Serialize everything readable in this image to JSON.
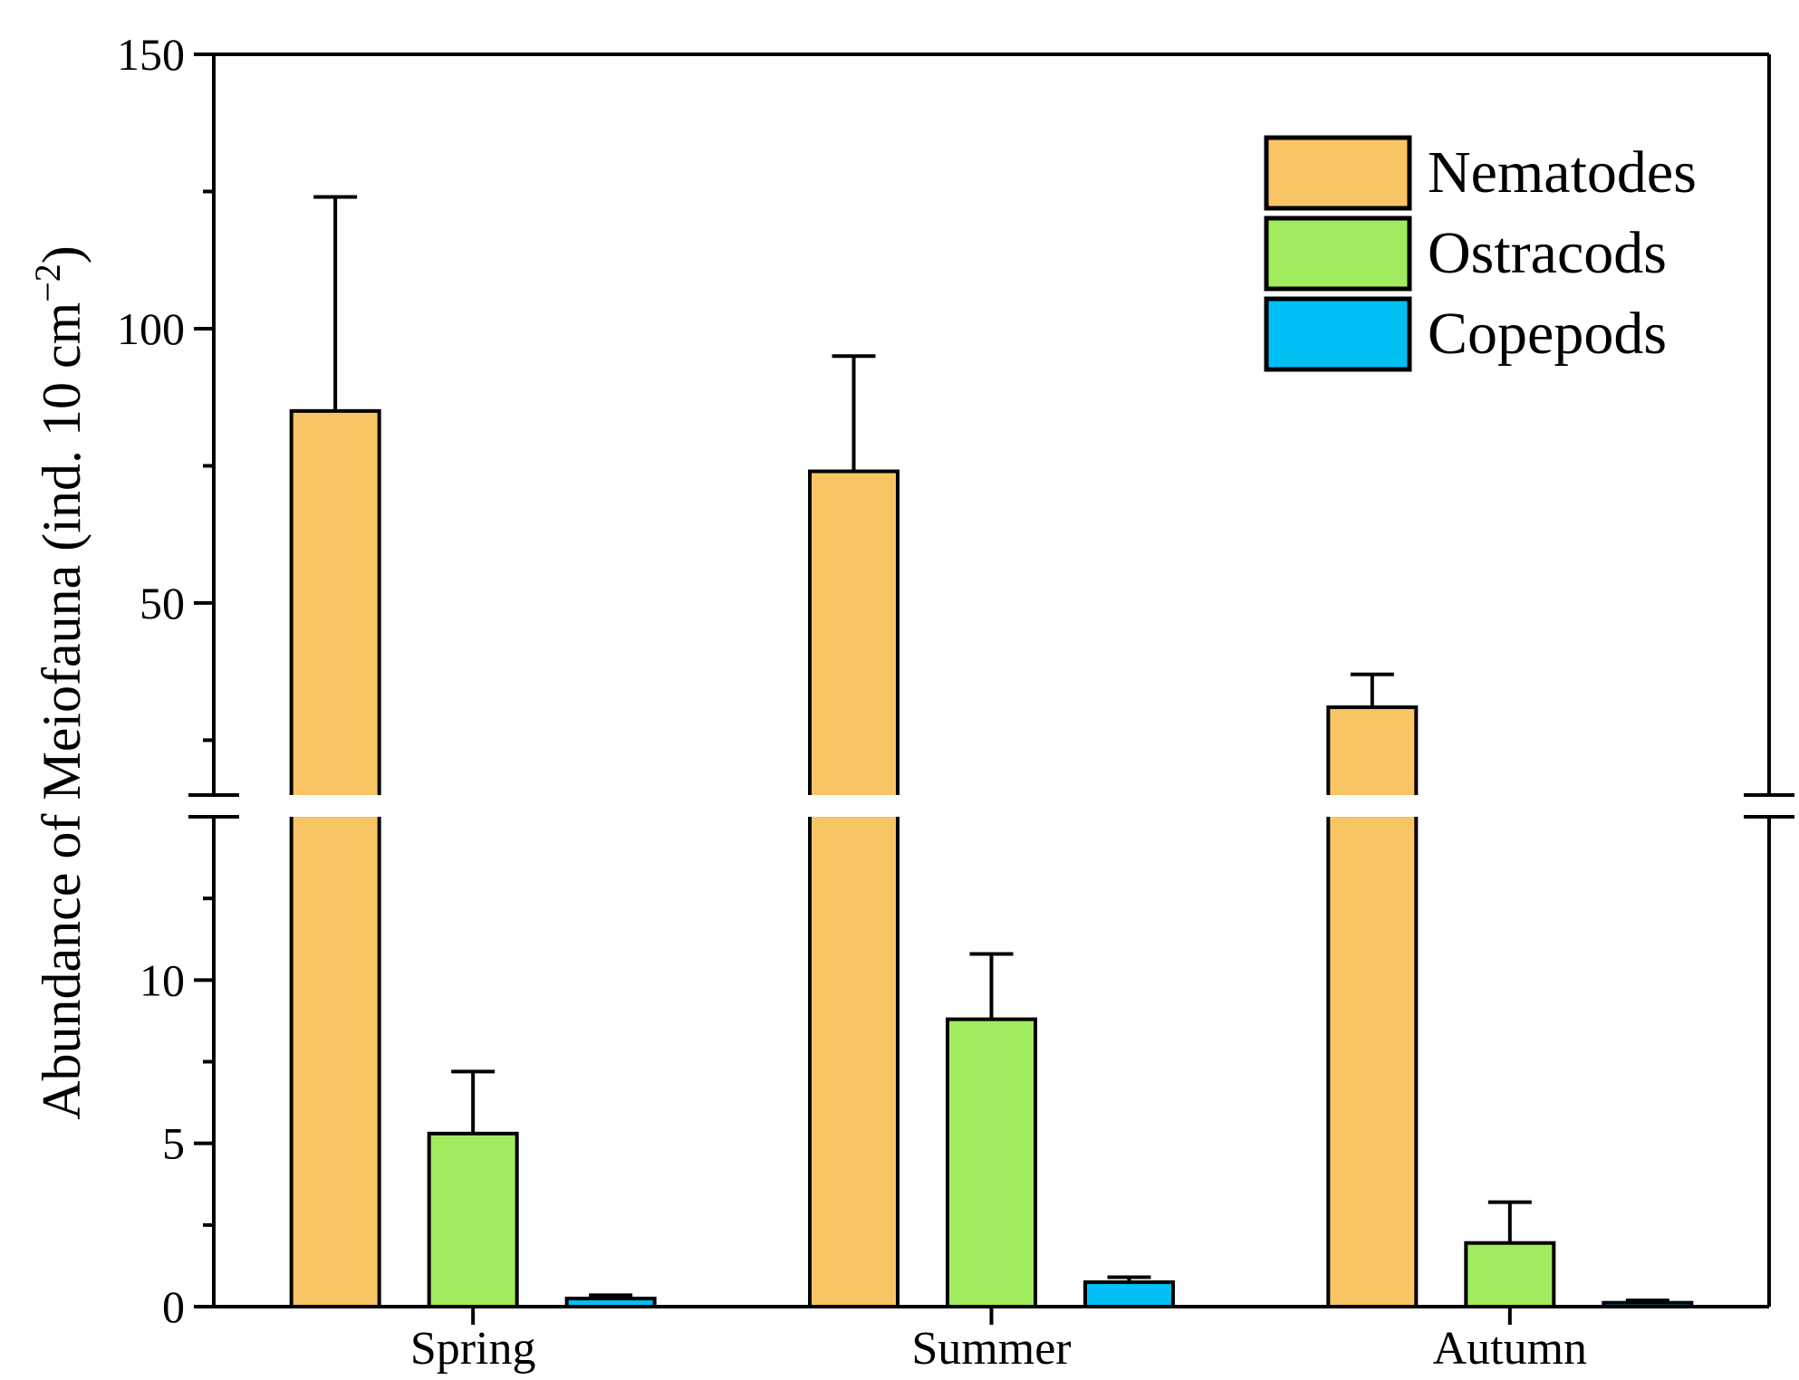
{
  "chart_data": {
    "type": "bar",
    "title": "",
    "xlabel": "",
    "ylabel": "Abundance of Meiofauna (ind. 10 cm",
    "ylabel_sup": "−2",
    "ylabel_close": ")",
    "categories": [
      "Spring",
      "Summer",
      "Autumn"
    ],
    "series": [
      {
        "name": "Nematodes",
        "color": "#F9C564",
        "values": [
          85,
          74,
          31
        ],
        "errors": [
          39,
          21,
          6
        ]
      },
      {
        "name": "Ostracods",
        "color": "#A1EB5E",
        "values": [
          5.3,
          8.8,
          1.95
        ],
        "errors": [
          1.9,
          2.0,
          1.25
        ]
      },
      {
        "name": "Copepods",
        "color": "#00BFF4",
        "values": [
          0.25,
          0.75,
          0.12
        ],
        "errors": [
          0.1,
          0.15,
          0.07
        ]
      }
    ],
    "y_axis_break": {
      "lower_range": [
        0,
        15
      ],
      "upper_range": [
        15,
        150
      ]
    },
    "y_ticks_lower": [
      "0",
      "5",
      "10"
    ],
    "y_ticks_upper": [
      "50",
      "100",
      "150"
    ],
    "legend_position": "top-right",
    "grid": false
  }
}
